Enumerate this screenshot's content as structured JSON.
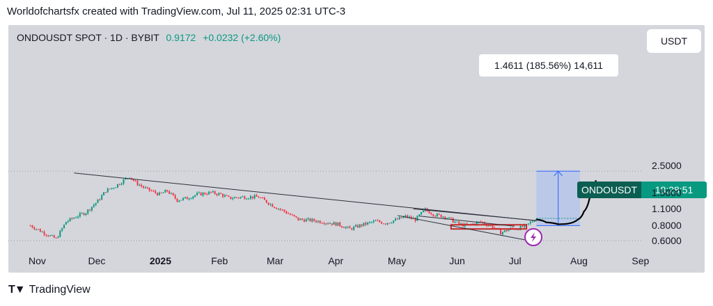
{
  "header": {
    "attribution": "Worldofchartsfx created with TradingView.com, Jul 11, 2025 02:31 UTC-3"
  },
  "legend": {
    "symbol": "ONDOUSDT SPOT · 1D · BYBIT",
    "price": "0.9172",
    "change": "+0.0232 (+2.60%)"
  },
  "currency": "USDT",
  "measure_label": "1.4611 (185.56%) 14,611",
  "price_tag": {
    "symbol": "ONDOUSDT",
    "countdown": "18:28:51"
  },
  "footer": {
    "brand": "TradingView",
    "icon": "tradingview-logo-icon"
  },
  "colors": {
    "up": "#089981",
    "down": "#f23645",
    "background": "#d4d6dc",
    "measure_fill": "#b7c5ea",
    "measure_line": "#2962ff"
  },
  "chart_data": {
    "type": "candlestick",
    "scale": "log",
    "y_ticks": [
      0.6,
      0.8,
      1.1,
      1.5,
      2.5
    ],
    "y_tick_labels": [
      "0.6000",
      "0.8000",
      "1.1000",
      "1.5000",
      "2.5000"
    ],
    "x_ticks": [
      "Nov",
      "Dec",
      "2025",
      "Feb",
      "Mar",
      "Apr",
      "May",
      "Jun",
      "Jul",
      "Aug",
      "Sep"
    ],
    "x_tick_dates": [
      "2024-11-01",
      "2024-12-01",
      "2025-01-01",
      "2025-02-01",
      "2025-03-01",
      "2025-04-01",
      "2025-05-01",
      "2025-06-01",
      "2025-07-01",
      "2025-08-01",
      "2025-09-01"
    ],
    "close_path": [
      [
        "2024-10-28",
        0.8
      ],
      [
        "2024-11-05",
        0.68
      ],
      [
        "2024-11-10",
        0.62
      ],
      [
        "2024-11-15",
        0.86
      ],
      [
        "2024-11-20",
        0.95
      ],
      [
        "2024-11-25",
        1.03
      ],
      [
        "2024-12-01",
        1.28
      ],
      [
        "2024-12-05",
        1.55
      ],
      [
        "2024-12-10",
        1.7
      ],
      [
        "2024-12-15",
        1.95
      ],
      [
        "2024-12-17",
        2.05
      ],
      [
        "2024-12-20",
        1.82
      ],
      [
        "2024-12-25",
        1.62
      ],
      [
        "2025-01-01",
        1.45
      ],
      [
        "2025-01-05",
        1.55
      ],
      [
        "2025-01-10",
        1.3
      ],
      [
        "2025-01-15",
        1.35
      ],
      [
        "2025-01-20",
        1.45
      ],
      [
        "2025-01-27",
        1.5
      ],
      [
        "2025-02-01",
        1.45
      ],
      [
        "2025-02-05",
        1.35
      ],
      [
        "2025-02-12",
        1.38
      ],
      [
        "2025-02-20",
        1.38
      ],
      [
        "2025-02-28",
        1.15
      ],
      [
        "2025-03-05",
        1.05
      ],
      [
        "2025-03-12",
        0.9
      ],
      [
        "2025-03-20",
        0.88
      ],
      [
        "2025-04-01",
        0.82
      ],
      [
        "2025-04-07",
        0.75
      ],
      [
        "2025-04-12",
        0.8
      ],
      [
        "2025-04-20",
        0.87
      ],
      [
        "2025-04-25",
        0.84
      ],
      [
        "2025-05-01",
        0.9
      ],
      [
        "2025-05-05",
        0.95
      ],
      [
        "2025-05-10",
        0.9
      ],
      [
        "2025-05-15",
        1.08
      ],
      [
        "2025-05-20",
        0.98
      ],
      [
        "2025-05-25",
        0.95
      ],
      [
        "2025-06-01",
        0.82
      ],
      [
        "2025-06-05",
        0.8
      ],
      [
        "2025-06-12",
        0.86
      ],
      [
        "2025-06-18",
        0.78
      ],
      [
        "2025-06-22",
        0.7
      ],
      [
        "2025-06-27",
        0.75
      ],
      [
        "2025-07-01",
        0.76
      ],
      [
        "2025-07-05",
        0.8
      ],
      [
        "2025-07-10",
        0.92
      ]
    ],
    "horizontal_zone": {
      "from": "2025-05-28",
      "to": "2025-07-05",
      "value": 0.78
    },
    "measure": {
      "from": "2025-07-10",
      "to": "2025-08-01",
      "low": 0.8,
      "high": 2.26,
      "label": "1.4611 (185.56%) 14,611"
    },
    "trendlines": [
      {
        "points": [
          [
            "2024-11-19",
            2.18
          ],
          [
            "2025-07-15",
            0.86
          ]
        ]
      },
      {
        "points": [
          [
            "2025-05-09",
            1.1
          ],
          [
            "2025-07-16",
            0.86
          ]
        ]
      },
      {
        "points": [
          [
            "2025-05-12",
            0.96
          ],
          [
            "2025-06-29",
            0.79
          ]
        ]
      },
      {
        "points": [
          [
            "2025-05-01",
            0.97
          ],
          [
            "2025-07-04",
            0.61
          ]
        ]
      }
    ],
    "projection": [
      [
        "2025-07-10",
        0.9
      ],
      [
        "2025-07-15",
        0.85
      ],
      [
        "2025-07-21",
        0.82
      ],
      [
        "2025-07-26",
        0.83
      ],
      [
        "2025-07-31",
        0.9
      ],
      [
        "2025-08-03",
        1.05
      ],
      [
        "2025-08-06",
        1.4
      ],
      [
        "2025-08-09",
        1.9
      ]
    ],
    "last_price": 0.9172
  }
}
